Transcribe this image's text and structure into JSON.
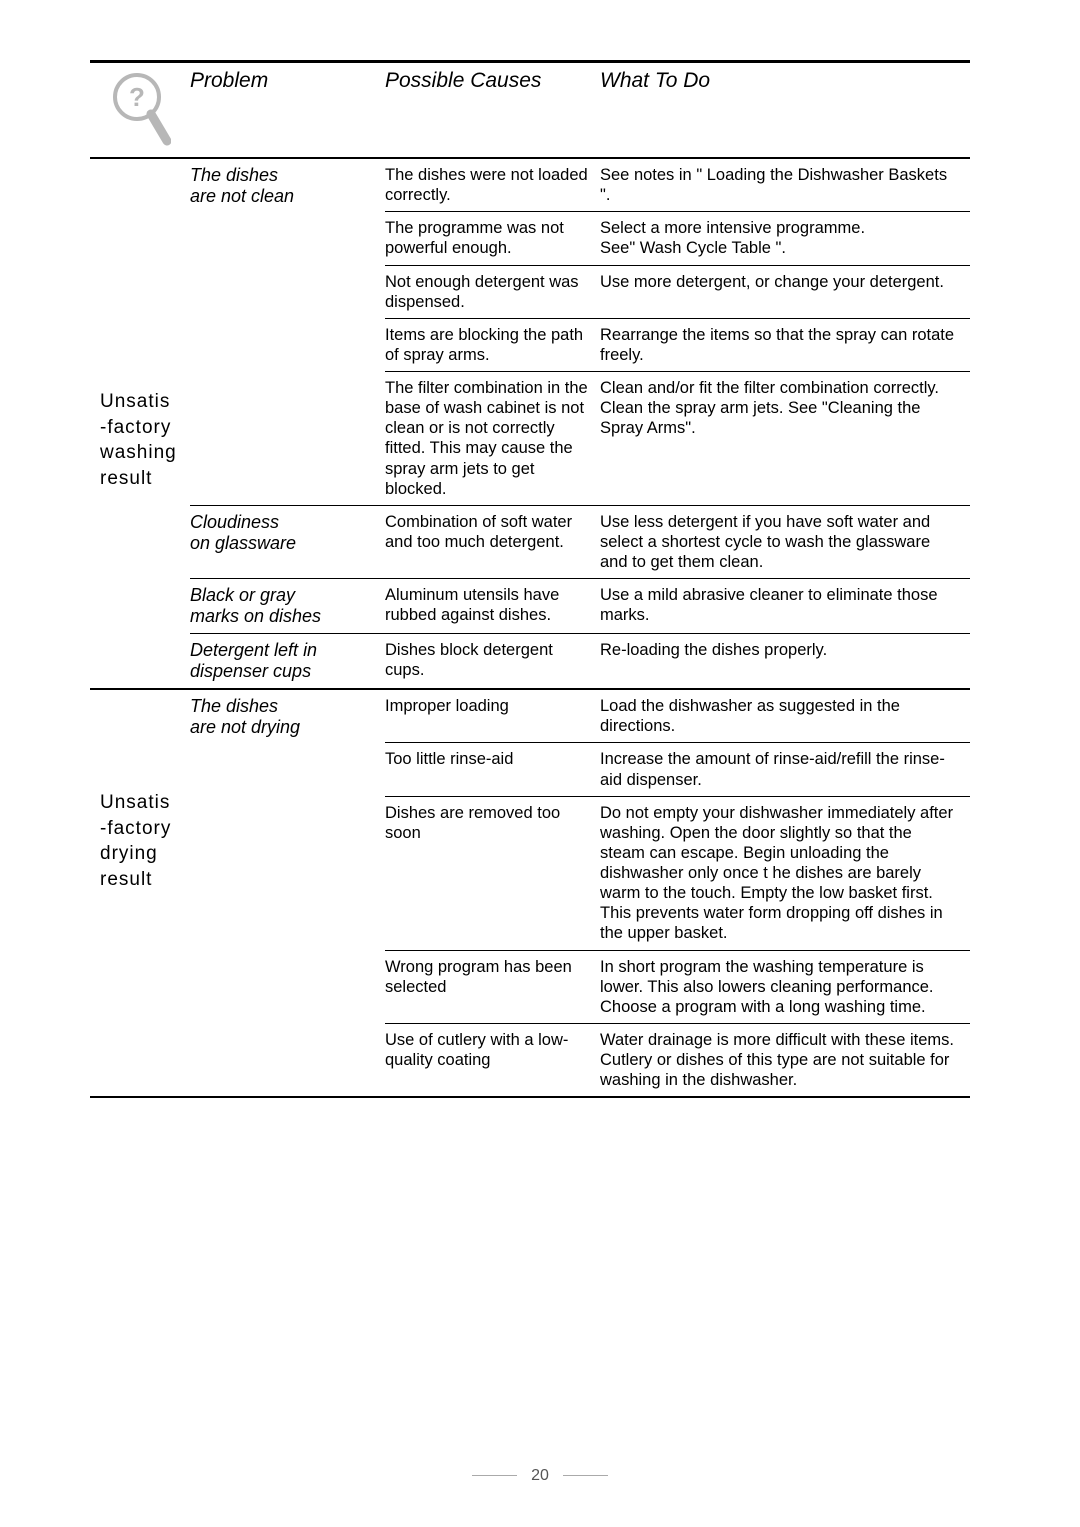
{
  "headers": {
    "problem": "Problem",
    "causes": "Possible Causes",
    "action": "What To Do"
  },
  "sections": [
    {
      "category": "Unsatis\n-factory\nwashing\nresult",
      "catClass": "washing",
      "groups": [
        {
          "problem": "The dishes\nare not clean",
          "rows": [
            {
              "cause": "The dishes  were not loaded correctly.",
              "action": "See notes in \" Loading the Dishwasher Baskets \"."
            },
            {
              "cause": "The programme was not powerful enough.",
              "action": "Select a more intensive programme.\nSee\" Wash Cycle Table \"."
            },
            {
              "cause": "Not enough detergent was dispensed.",
              "action": "Use more detergent, or change your detergent."
            },
            {
              "cause": "Items are blocking the path of spray arms.",
              "action": "Rearrange the items so that the spray can rotate freely."
            },
            {
              "cause": "The filter combination in the base of wash cabinet is not clean or is not correctly fitted. This may cause the spray arm jets to get blocked.",
              "action": "Clean and/or fit the filter combination correctly.\nClean the spray arm jets. See \"Cleaning the Spray Arms\"."
            }
          ]
        },
        {
          "problem": "Cloudiness\non glassware",
          "rows": [
            {
              "cause": "Combination of soft water and too much detergent.",
              "action": "Use less detergent if you have soft water and select a shortest cycle to wash the glassware and to get them clean."
            }
          ]
        },
        {
          "problem": "Black or gray\nmarks on dishes",
          "rows": [
            {
              "cause": "Aluminum utensils have rubbed against dishes.",
              "action": "Use a mild abrasive cleaner to eliminate those marks."
            }
          ]
        },
        {
          "problem": "Detergent left in\ndispenser cups",
          "rows": [
            {
              "cause": "Dishes block detergent cups.",
              "action": "Re-loading the dishes properly."
            }
          ]
        }
      ]
    },
    {
      "category": "Unsatis\n-factory\ndrying\nresult",
      "catClass": "drying",
      "groups": [
        {
          "problem": "The dishes\nare not drying",
          "rows": [
            {
              "cause": "Improper loading",
              "action": "Load the dishwasher as suggested in the directions."
            },
            {
              "cause": "Too little rinse-aid",
              "action": "Increase the amount of rinse-aid/refill the rinse-aid dispenser."
            },
            {
              "cause": "Dishes are removed too soon",
              "action": "Do not empty your dishwasher immediately after washing. Open the door slightly so that the steam can escape. Begin unloading the dishwasher only once t he dishes are barely warm to the touch. Empty the low basket first. This prevents water form dropping off dishes in the upper basket."
            },
            {
              "cause": "Wrong program has been selected",
              "action": "In short program the washing temperature is lower. This also lowers cleaning performance. Choose a program with a long washing time."
            },
            {
              "cause": "Use of cutlery with a low-quality coating",
              "action": "Water drainage is more difficult with these items. Cutlery or dishes of this type are not suitable for washing in the dishwasher."
            }
          ]
        }
      ]
    }
  ],
  "pageNumber": "20",
  "iconColors": {
    "stroke": "#b7b7b7",
    "fill": "#ffffff"
  }
}
